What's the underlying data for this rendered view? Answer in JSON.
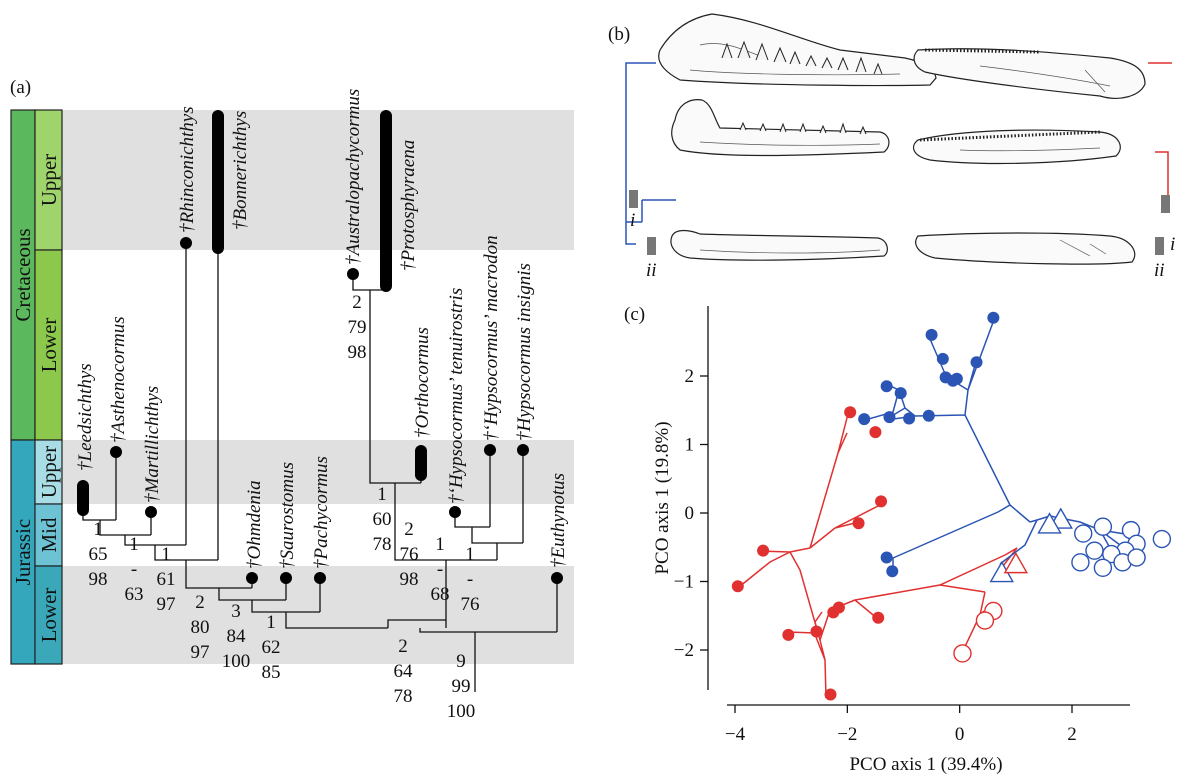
{
  "panels": {
    "a": "(a)",
    "b": "(b)",
    "c": "(c)"
  },
  "timescale": {
    "periods": [
      "Cretaceous",
      "Jurassic"
    ],
    "epochs": [
      "Upper",
      "Lower",
      "Upper",
      "Mid",
      "Lower"
    ]
  },
  "taxa": [
    {
      "name": "†Leedsichthys"
    },
    {
      "name": "†Asthenocormus"
    },
    {
      "name": "†Martillichthys"
    },
    {
      "name": "†Rhinconichthys"
    },
    {
      "name": "†Bonnerichthys"
    },
    {
      "name": "†Ohmdenia"
    },
    {
      "name": "†Saurostomus"
    },
    {
      "name": "†Pachycormus"
    },
    {
      "name": "†Australopachycormus"
    },
    {
      "name": "†Protosphyraena"
    },
    {
      "name": "†Orthocormus"
    },
    {
      "name": "†‘Hypsocormus’ tenuirostris"
    },
    {
      "name": "†‘Hypsocormus’ macrodon"
    },
    {
      "name": "†Hypsocormus insignis"
    },
    {
      "name": "†Euthynotus"
    }
  ],
  "node_support": [
    {
      "lines": [
        "1",
        "65",
        "98"
      ]
    },
    {
      "lines": [
        "1",
        "-",
        "63"
      ]
    },
    {
      "lines": [
        "1",
        "61",
        "97"
      ]
    },
    {
      "lines": [
        "2",
        "80",
        "97"
      ]
    },
    {
      "lines": [
        "3",
        "84",
        "100"
      ]
    },
    {
      "lines": [
        "1",
        "62",
        "85"
      ]
    },
    {
      "lines": [
        "2",
        "79",
        "98"
      ]
    },
    {
      "lines": [
        "1",
        "60",
        "78"
      ]
    },
    {
      "lines": [
        "2",
        "76",
        "98"
      ]
    },
    {
      "lines": [
        "1",
        "-",
        "68"
      ]
    },
    {
      "lines": [
        "1",
        "-",
        "76"
      ]
    },
    {
      "lines": [
        "2",
        "64",
        "78"
      ]
    },
    {
      "lines": [
        "9",
        "99",
        "100"
      ]
    }
  ],
  "jaw_labels": {
    "i": "i",
    "ii": "ii"
  },
  "colors": {
    "blue": "#2b55b5",
    "red": "#e0302f",
    "green_light": "#8cc84b",
    "green_dark": "#5cb85c",
    "teal": "#3aa8b8",
    "teal_light": "#a8dde6",
    "band": "#e0e0e0"
  },
  "chart_data": {
    "type": "scatter",
    "xlabel": "PCO axis 1 (39.4%)",
    "ylabel": "PCO axis 1 (19.8%)",
    "xlim": [
      -4.2,
      3.8
    ],
    "ylim": [
      -2.9,
      3.0
    ],
    "xticks": [
      -4,
      -2,
      0,
      2
    ],
    "yticks": [
      -2,
      -1,
      0,
      1,
      2
    ],
    "series": [
      {
        "color": "blue",
        "marker": "filled-circle",
        "points": [
          [
            -0.5,
            2.6
          ],
          [
            0.6,
            2.85
          ],
          [
            -0.3,
            2.25
          ],
          [
            0.3,
            2.2
          ],
          [
            -1.3,
            1.85
          ],
          [
            -1.05,
            1.75
          ],
          [
            -0.25,
            1.98
          ],
          [
            -0.12,
            1.93
          ],
          [
            -0.05,
            1.96
          ],
          [
            -1.7,
            1.37
          ],
          [
            -0.55,
            1.42
          ],
          [
            -1.25,
            1.4
          ],
          [
            -0.9,
            1.38
          ],
          [
            -1.3,
            -0.65
          ],
          [
            -1.2,
            -0.85
          ]
        ]
      },
      {
        "color": "blue",
        "marker": "open-circle",
        "points": [
          [
            2.2,
            -0.3
          ],
          [
            2.55,
            -0.2
          ],
          [
            3.05,
            -0.25
          ],
          [
            3.15,
            -0.45
          ],
          [
            3.6,
            -0.38
          ],
          [
            2.95,
            -0.55
          ],
          [
            2.4,
            -0.55
          ],
          [
            2.7,
            -0.6
          ],
          [
            2.9,
            -0.72
          ],
          [
            3.15,
            -0.65
          ],
          [
            2.15,
            -0.72
          ],
          [
            2.55,
            -0.8
          ]
        ]
      },
      {
        "color": "blue",
        "marker": "open-triangle",
        "points": [
          [
            1.8,
            -0.1
          ],
          [
            1.6,
            -0.17
          ],
          [
            0.75,
            -0.88
          ]
        ]
      },
      {
        "color": "red",
        "marker": "filled-circle",
        "points": [
          [
            -1.95,
            1.47
          ],
          [
            -1.5,
            1.18
          ],
          [
            -1.4,
            0.17
          ],
          [
            -1.8,
            -0.15
          ],
          [
            -3.5,
            -0.55
          ],
          [
            -3.95,
            -1.07
          ],
          [
            -2.15,
            -1.38
          ],
          [
            -2.25,
            -1.45
          ],
          [
            -1.45,
            -1.53
          ],
          [
            -2.55,
            -1.73
          ],
          [
            -3.05,
            -1.78
          ],
          [
            -2.3,
            -2.65
          ]
        ]
      },
      {
        "color": "red",
        "marker": "open-circle",
        "points": [
          [
            0.6,
            -1.43
          ],
          [
            0.45,
            -1.57
          ],
          [
            0.05,
            -2.05
          ]
        ]
      },
      {
        "color": "red",
        "marker": "open-triangle",
        "points": [
          [
            1.0,
            -0.75
          ]
        ]
      }
    ]
  }
}
